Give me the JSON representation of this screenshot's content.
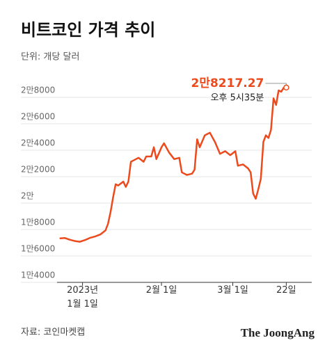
{
  "chart_data": {
    "type": "line",
    "title": "비트코인 가격 추이",
    "subtitle": "단위: 개당 달러",
    "source": "자료: 코인마켓캡",
    "brand": "The JoongAng",
    "annotation": "오후 5시35분",
    "x": [
      "2022-12-23",
      "2022-12-25",
      "2022-12-27",
      "2022-12-29",
      "2022-12-31",
      "2023-01-02",
      "2023-01-04",
      "2023-01-06",
      "2023-01-08",
      "2023-01-10",
      "2023-01-11",
      "2023-01-12",
      "2023-01-13",
      "2023-01-14",
      "2023-01-15",
      "2023-01-17",
      "2023-01-18",
      "2023-01-19",
      "2023-01-20",
      "2023-01-21",
      "2023-01-23",
      "2023-01-25",
      "2023-01-26",
      "2023-01-28",
      "2023-01-29",
      "2023-01-30",
      "2023-02-01",
      "2023-02-02",
      "2023-02-04",
      "2023-02-06",
      "2023-02-08",
      "2023-02-09",
      "2023-02-11",
      "2023-02-13",
      "2023-02-14",
      "2023-02-15",
      "2023-02-16",
      "2023-02-18",
      "2023-02-20",
      "2023-02-22",
      "2023-02-24",
      "2023-02-26",
      "2023-02-28",
      "2023-03-02",
      "2023-03-03",
      "2023-03-05",
      "2023-03-07",
      "2023-03-08",
      "2023-03-09",
      "2023-03-10",
      "2023-03-11",
      "2023-03-12",
      "2023-03-13",
      "2023-03-14",
      "2023-03-15",
      "2023-03-16",
      "2023-03-17",
      "2023-03-18",
      "2023-03-19",
      "2023-03-20",
      "2023-03-21",
      "2023-03-22"
    ],
    "series": [
      {
        "name": "비트코인",
        "color": "#ec4a1c",
        "values": [
          16800,
          16830,
          16700,
          16600,
          16550,
          16680,
          16850,
          16950,
          17100,
          17400,
          17900,
          18800,
          19900,
          20900,
          20800,
          21100,
          20700,
          21100,
          22600,
          22700,
          22900,
          22600,
          23000,
          23000,
          23700,
          22800,
          23700,
          24000,
          23300,
          22800,
          22900,
          21800,
          21600,
          21700,
          22000,
          24300,
          23700,
          24600,
          24800,
          24100,
          23200,
          23400,
          23100,
          23400,
          22300,
          22400,
          22100,
          21800,
          20200,
          19800,
          20500,
          21300,
          24100,
          24600,
          24400,
          25000,
          27400,
          26900,
          28000,
          27900,
          28200,
          28217.27
        ],
        "value_labels": [
          null,
          null,
          null,
          null,
          null,
          null,
          null,
          null,
          null,
          null,
          null,
          null,
          null,
          null,
          null,
          null,
          null,
          null,
          null,
          null,
          null,
          null,
          null,
          null,
          null,
          null,
          null,
          null,
          null,
          null,
          null,
          null,
          null,
          null,
          null,
          null,
          null,
          null,
          null,
          null,
          null,
          null,
          null,
          null,
          null,
          null,
          null,
          null,
          null,
          null,
          null,
          null,
          null,
          null,
          null,
          null,
          null,
          null,
          null,
          null,
          null,
          "2만8217.27"
        ]
      }
    ],
    "xlim": [
      "2022-12-22",
      "2023-04-01"
    ],
    "xticks": [
      {
        "value": "2023-01-01",
        "label": "2023년\n1월 1일"
      },
      {
        "value": "2023-02-01",
        "label": "2월 1일"
      },
      {
        "value": "2023-03-01",
        "label": "3월 1일"
      },
      {
        "value": "2023-03-22",
        "label": "22일"
      }
    ],
    "ylim": [
      14000,
      28000
    ],
    "yticks": [
      {
        "value": 14000,
        "label": "1만4000"
      },
      {
        "value": 16000,
        "label": "1만6000"
      },
      {
        "value": 18000,
        "label": "1만8000"
      },
      {
        "value": 20000,
        "label": "2만"
      },
      {
        "value": 22000,
        "label": "2만2000"
      },
      {
        "value": 24000,
        "label": "2만4000"
      },
      {
        "value": 26000,
        "label": "2만6000"
      },
      {
        "value": 28000,
        "label": "2만8000"
      }
    ],
    "grid": true
  }
}
